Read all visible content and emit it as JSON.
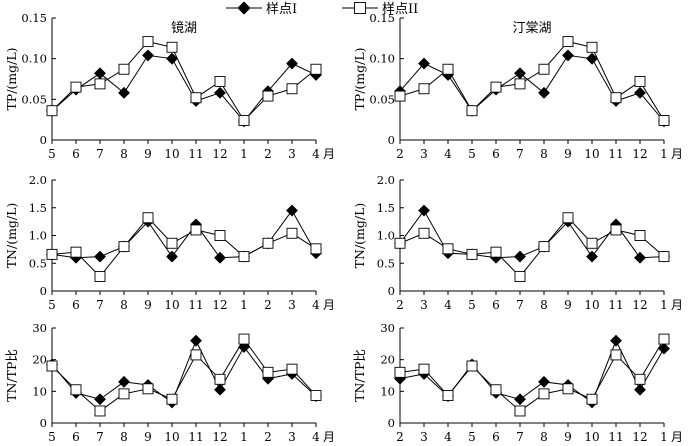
{
  "legend": {
    "series1_label": "样点I",
    "series2_label": "样点II",
    "placement": "top-center"
  },
  "chart_data": [
    {
      "type": "line",
      "panel": "jinghu-tp",
      "title": "镜湖",
      "xlabel": "",
      "ylabel": "TP/(mg/L)",
      "categories": [
        "5",
        "6",
        "7",
        "8",
        "9",
        "10",
        "11",
        "12",
        "1",
        "2",
        "3",
        "4"
      ],
      "month_suffix": "月",
      "ylim": [
        0,
        0.15
      ],
      "yticks": [
        "0",
        "0.05",
        "0.10",
        "0.15"
      ],
      "series": [
        {
          "name": "样点I",
          "marker": "filled-diamond",
          "values": [
            0.036,
            0.062,
            0.082,
            0.058,
            0.104,
            0.1,
            0.048,
            0.058,
            0.023,
            0.06,
            0.094,
            0.08
          ]
        },
        {
          "name": "样点II",
          "marker": "open-square",
          "values": [
            0.036,
            0.065,
            0.069,
            0.087,
            0.121,
            0.114,
            0.052,
            0.072,
            0.024,
            0.054,
            0.063,
            0.087
          ]
        }
      ]
    },
    {
      "type": "line",
      "panel": "tingtanghu-tp",
      "title": "汀棠湖",
      "xlabel": "",
      "ylabel": "TP/(mg/L)",
      "categories": [
        "2",
        "3",
        "4",
        "5",
        "6",
        "7",
        "8",
        "9",
        "10",
        "11",
        "12",
        "1"
      ],
      "month_suffix": "月",
      "ylim": [
        0,
        0.15
      ],
      "yticks": [
        "0",
        "0.05",
        "0.10",
        "0.15"
      ],
      "series": [
        {
          "name": "样点I",
          "marker": "filled-diamond",
          "values": [
            0.06,
            0.094,
            0.08,
            0.036,
            0.062,
            0.082,
            0.058,
            0.104,
            0.1,
            0.048,
            0.058,
            0.023
          ]
        },
        {
          "name": "样点II",
          "marker": "open-square",
          "values": [
            0.054,
            0.063,
            0.087,
            0.036,
            0.065,
            0.069,
            0.087,
            0.121,
            0.114,
            0.052,
            0.072,
            0.024
          ]
        }
      ]
    },
    {
      "type": "line",
      "panel": "jinghu-tn",
      "title": "",
      "xlabel": "",
      "ylabel": "TN/(mg/L)",
      "categories": [
        "5",
        "6",
        "7",
        "8",
        "9",
        "10",
        "11",
        "12",
        "1",
        "2",
        "3",
        "4"
      ],
      "month_suffix": "月",
      "ylim": [
        0,
        2.0
      ],
      "yticks": [
        "0",
        "0.5",
        "1.0",
        "1.5",
        "2.0"
      ],
      "series": [
        {
          "name": "样点I",
          "marker": "filled-diamond",
          "values": [
            0.66,
            0.6,
            0.62,
            0.8,
            1.25,
            0.62,
            1.2,
            0.6,
            0.62,
            0.86,
            1.45,
            0.68
          ]
        },
        {
          "name": "样点II",
          "marker": "open-square",
          "values": [
            0.66,
            0.7,
            0.26,
            0.8,
            1.32,
            0.86,
            1.1,
            1.0,
            0.62,
            0.86,
            1.04,
            0.76
          ]
        }
      ]
    },
    {
      "type": "line",
      "panel": "tingtanghu-tn",
      "title": "",
      "xlabel": "",
      "ylabel": "TN/(mg/L)",
      "categories": [
        "2",
        "3",
        "4",
        "5",
        "6",
        "7",
        "8",
        "9",
        "10",
        "11",
        "12",
        "1"
      ],
      "month_suffix": "月",
      "ylim": [
        0,
        2.0
      ],
      "yticks": [
        "0",
        "0.5",
        "1.0",
        "1.5",
        "2.0"
      ],
      "series": [
        {
          "name": "样点I",
          "marker": "filled-diamond",
          "values": [
            0.86,
            1.45,
            0.68,
            0.66,
            0.6,
            0.62,
            0.8,
            1.25,
            0.62,
            1.2,
            0.6,
            0.62
          ]
        },
        {
          "name": "样点II",
          "marker": "open-square",
          "values": [
            0.86,
            1.04,
            0.76,
            0.66,
            0.7,
            0.26,
            0.8,
            1.32,
            0.86,
            1.1,
            1.0,
            0.62
          ]
        }
      ]
    },
    {
      "type": "line",
      "panel": "jinghu-ratio",
      "title": "",
      "xlabel": "",
      "ylabel": "TN/TP比",
      "categories": [
        "5",
        "6",
        "7",
        "8",
        "9",
        "10",
        "11",
        "12",
        "1",
        "2",
        "3",
        "4"
      ],
      "month_suffix": "月",
      "ylim": [
        0,
        30
      ],
      "yticks": [
        "0",
        "10",
        "20",
        "30"
      ],
      "series": [
        {
          "name": "样点I",
          "marker": "filled-diamond",
          "values": [
            18.5,
            9.5,
            7.5,
            13.0,
            12.0,
            6.5,
            26.0,
            10.5,
            24.0,
            14.0,
            15.5,
            8.5
          ]
        },
        {
          "name": "样点II",
          "marker": "open-square",
          "values": [
            18.0,
            10.5,
            3.8,
            9.2,
            10.8,
            7.5,
            21.5,
            13.8,
            26.5,
            16.0,
            17.0,
            8.7
          ]
        }
      ]
    },
    {
      "type": "line",
      "panel": "tingtanghu-ratio",
      "title": "",
      "xlabel": "",
      "ylabel": "TN/TP比",
      "categories": [
        "2",
        "3",
        "4",
        "5",
        "6",
        "7",
        "8",
        "9",
        "10",
        "11",
        "12",
        "1"
      ],
      "month_suffix": "月",
      "ylim": [
        0,
        30
      ],
      "yticks": [
        "0",
        "10",
        "20",
        "30"
      ],
      "series": [
        {
          "name": "样点I",
          "marker": "filled-diamond",
          "values": [
            14.0,
            15.5,
            8.5,
            18.5,
            9.5,
            7.5,
            13.0,
            12.0,
            6.5,
            26.0,
            10.5,
            23.5
          ]
        },
        {
          "name": "样点II",
          "marker": "open-square",
          "values": [
            16.0,
            17.0,
            8.7,
            18.0,
            10.5,
            3.8,
            9.2,
            10.8,
            7.5,
            21.5,
            13.8,
            26.5
          ]
        }
      ]
    }
  ]
}
